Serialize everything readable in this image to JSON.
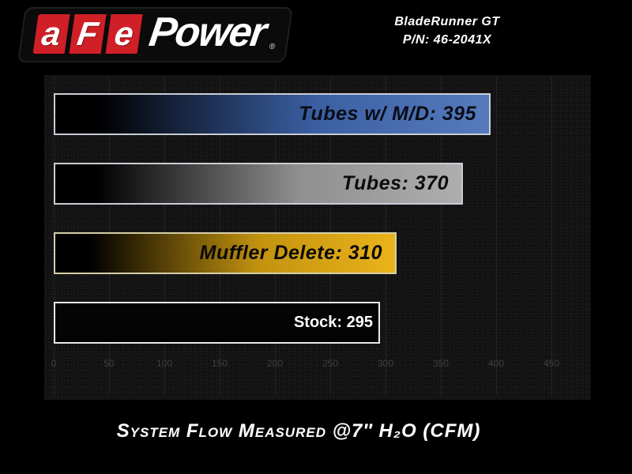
{
  "logo": {
    "letters": [
      "a",
      "F",
      "e"
    ],
    "word": "Power",
    "registered_mark": "®",
    "red": "#d01f27"
  },
  "header": {
    "product": "BladeRunner GT",
    "part_number": "P/N: 46-2041X"
  },
  "chart_data": {
    "type": "bar",
    "orientation": "horizontal",
    "title": "",
    "xlabel": "System Flow Measured @7″ H₂O (CFM)",
    "ylabel": "",
    "categories": [
      "Tubes w/ M/D",
      "Tubes",
      "Muffler Delete",
      "Stock"
    ],
    "values": [
      395,
      370,
      310,
      295
    ],
    "xlim": [
      0,
      485
    ],
    "xticks": [
      0,
      50,
      100,
      150,
      200,
      250,
      300,
      350,
      400,
      450
    ],
    "grid": true,
    "legend": "none",
    "tick_color": "#3f3f3f",
    "plot_bg": "#131313",
    "bars": [
      {
        "id": "tubes-w-md",
        "display": "Tubes w/ M/D: 395",
        "value": 395,
        "gradient": [
          "#000000",
          "#3b5fa3",
          "#567bbd"
        ],
        "border": "#c9ced6",
        "text_color": "#0a0d16",
        "label_style": "italic"
      },
      {
        "id": "tubes",
        "display": "Tubes: 370",
        "value": 370,
        "gradient": [
          "#000000",
          "#8f8f8f",
          "#aeaeae"
        ],
        "border": "#c9ced6",
        "text_color": "#0c0c0c",
        "label_style": "italic"
      },
      {
        "id": "muffler-delete",
        "display": "Muffler Delete: 310",
        "value": 310,
        "gradient": [
          "#000000",
          "#c39310",
          "#eab31a"
        ],
        "border": "#d6cfa8",
        "text_color": "#0c0a04",
        "label_style": "italic"
      },
      {
        "id": "stock",
        "display": "Stock: 295",
        "value": 295,
        "gradient": [
          "#040404",
          "#040404",
          "#040404"
        ],
        "border": "#ebebeb",
        "text_color": "#ffffff",
        "label_style": "normal"
      }
    ]
  }
}
